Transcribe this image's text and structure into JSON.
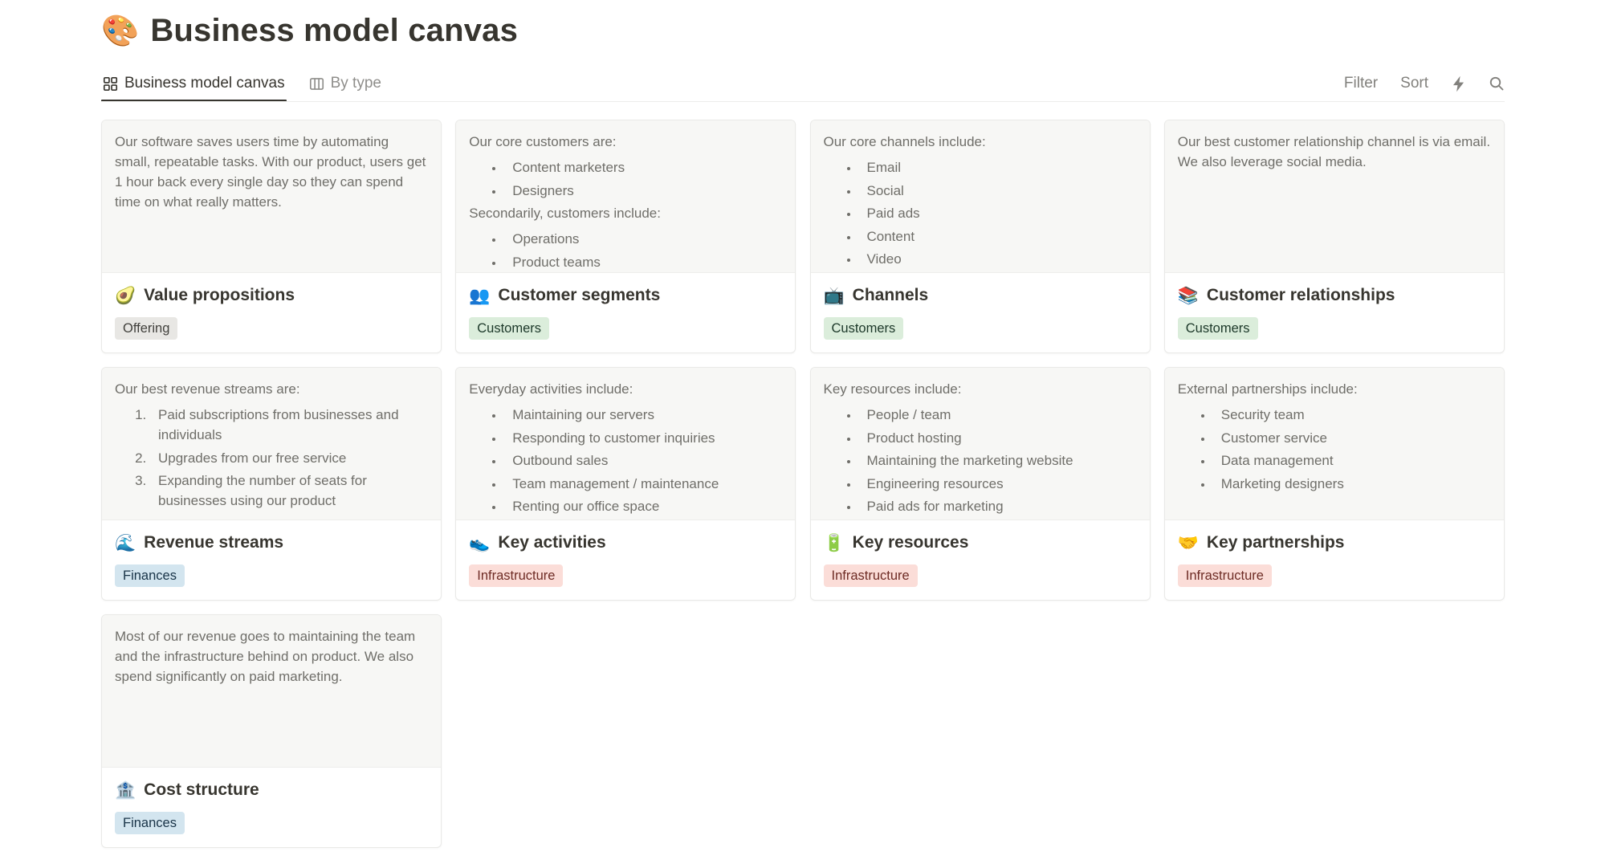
{
  "page": {
    "icon": "🎨",
    "title": "Business model canvas"
  },
  "tabs": [
    {
      "label": "Business model canvas",
      "icon": "gallery-icon",
      "active": true
    },
    {
      "label": "By type",
      "icon": "board-icon",
      "active": false
    }
  ],
  "toolbar": {
    "filter_label": "Filter",
    "sort_label": "Sort",
    "icons": [
      "lightning-icon",
      "search-icon"
    ]
  },
  "tag_palette": {
    "gray": {
      "bg": "#E8E7E4",
      "fg": "#41403C"
    },
    "green": {
      "bg": "#DBEDDB",
      "fg": "#1C3829"
    },
    "red": {
      "bg": "#FBDDD8",
      "fg": "#6E2C25"
    },
    "blue": {
      "bg": "#D3E5EF",
      "fg": "#183347"
    }
  },
  "cards": [
    {
      "id": "value-propositions",
      "emoji": "🥑",
      "title": "Value propositions",
      "tag": {
        "label": "Offering",
        "color": "gray"
      },
      "preview": [
        {
          "type": "p",
          "text": "Our software saves users time by automating small, repeatable tasks. With our product, users get 1 hour back every single day so they can spend time on what really matters."
        }
      ]
    },
    {
      "id": "customer-segments",
      "emoji": "👥",
      "title": "Customer segments",
      "tag": {
        "label": "Customers",
        "color": "green"
      },
      "preview": [
        {
          "type": "p",
          "text": "Our core customers are:"
        },
        {
          "type": "ul",
          "items": [
            "Content marketers",
            "Designers"
          ]
        },
        {
          "type": "p",
          "text": "Secondarily, customers include:"
        },
        {
          "type": "ul",
          "items": [
            "Operations",
            "Product teams"
          ]
        }
      ]
    },
    {
      "id": "channels",
      "emoji": "📺",
      "title": "Channels",
      "tag": {
        "label": "Customers",
        "color": "green"
      },
      "preview": [
        {
          "type": "p",
          "text": "Our core channels include:"
        },
        {
          "type": "ul",
          "items": [
            "Email",
            "Social",
            "Paid ads",
            "Content",
            "Video"
          ]
        }
      ]
    },
    {
      "id": "customer-relationships",
      "emoji": "📚",
      "title": "Customer relationships",
      "tag": {
        "label": "Customers",
        "color": "green"
      },
      "preview": [
        {
          "type": "p",
          "text": "Our best customer relationship channel is via email. We also leverage social media."
        }
      ]
    },
    {
      "id": "revenue-streams",
      "emoji": "🌊",
      "title": "Revenue streams",
      "tag": {
        "label": "Finances",
        "color": "blue"
      },
      "preview": [
        {
          "type": "p",
          "text": "Our best revenue streams are:"
        },
        {
          "type": "ol",
          "items": [
            "Paid subscriptions from businesses and individuals",
            "Upgrades from our free service",
            "Expanding the number of seats for businesses using our product"
          ]
        }
      ]
    },
    {
      "id": "key-activities",
      "emoji": "👟",
      "title": "Key activities",
      "tag": {
        "label": "Infrastructure",
        "color": "red"
      },
      "preview": [
        {
          "type": "p",
          "text": "Everyday activities include:"
        },
        {
          "type": "ul",
          "items": [
            "Maintaining our servers",
            "Responding to customer inquiries",
            "Outbound sales",
            "Team management / maintenance",
            "Renting our office space"
          ]
        }
      ]
    },
    {
      "id": "key-resources",
      "emoji": "🔋",
      "title": "Key resources",
      "tag": {
        "label": "Infrastructure",
        "color": "red"
      },
      "preview": [
        {
          "type": "p",
          "text": "Key resources include:"
        },
        {
          "type": "ul",
          "items": [
            "People / team",
            "Product hosting",
            "Maintaining the marketing website",
            "Engineering resources",
            "Paid ads for marketing"
          ]
        }
      ]
    },
    {
      "id": "key-partnerships",
      "emoji": "🤝",
      "title": "Key partnerships",
      "tag": {
        "label": "Infrastructure",
        "color": "red"
      },
      "preview": [
        {
          "type": "p",
          "text": "External partnerships include:"
        },
        {
          "type": "ul",
          "items": [
            "Security team",
            "Customer service",
            "Data management",
            "Marketing designers"
          ]
        }
      ]
    },
    {
      "id": "cost-structure",
      "emoji": "🏦",
      "title": "Cost structure",
      "tag": {
        "label": "Finances",
        "color": "blue"
      },
      "preview": [
        {
          "type": "p",
          "text": "Most of our revenue goes to maintaining the team and the infrastructure behind on product. We also spend significantly on paid marketing."
        }
      ]
    }
  ]
}
